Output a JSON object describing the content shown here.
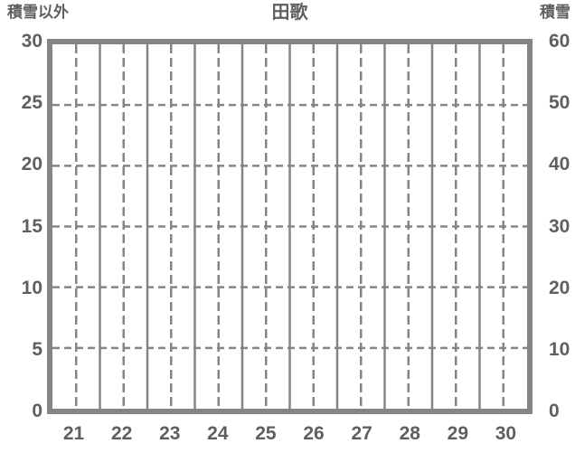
{
  "colors": {
    "grid": "#858585",
    "text": "#5f5f5f",
    "background": "#ffffff"
  },
  "chart_data": {
    "type": "line",
    "title": "田歌",
    "series": [],
    "x_axis": {
      "label": "",
      "ticks": [
        "21",
        "22",
        "23",
        "24",
        "25",
        "26",
        "27",
        "28",
        "29",
        "30"
      ],
      "range": [
        20.5,
        30.5
      ],
      "grid": "solid lines at day boundaries, dashed lines at day midpoints"
    },
    "y_axis_left": {
      "label": "積雪以外",
      "ticks": [
        "30",
        "25",
        "20",
        "15",
        "10",
        "5",
        "0"
      ],
      "range": [
        0,
        30
      ],
      "grid": "dashed horizontal lines at each tick"
    },
    "y_axis_right": {
      "label": "積雪",
      "ticks": [
        "60",
        "50",
        "40",
        "30",
        "20",
        "10",
        "0"
      ],
      "range": [
        0,
        60
      ]
    },
    "legend": "none",
    "plot_background": "#ffffff"
  }
}
